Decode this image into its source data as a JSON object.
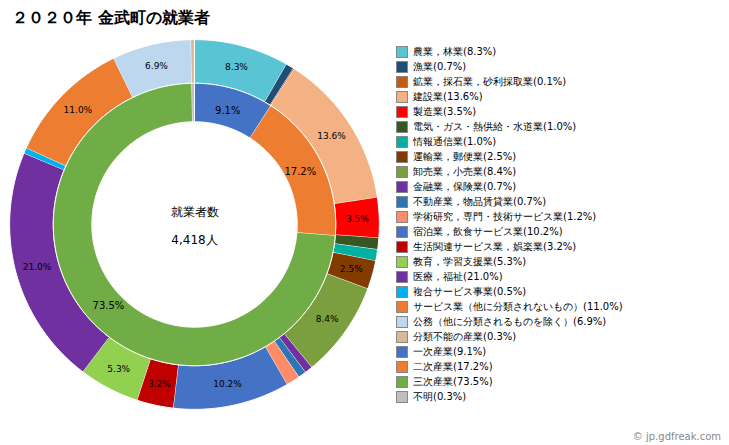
{
  "chart_data": {
    "type": "pie",
    "title": "２０２０年 金武町の就業者",
    "annotations": [
      "就業者数",
      "4,418人",
      "© jp.gdfreak.com"
    ],
    "series": [
      {
        "categories": [
          "農業，林業(8.3%)",
          "漁業(0.7%)",
          "鉱業，採石業，砂利採取業(0.1%)",
          "建設業(13.6%)",
          "製造業(3.5%)",
          "電気・ガス・熱供給・水道業(1.0%)",
          "情報通信業(1.0%)",
          "運輸業，郵便業(2.5%)",
          "卸売業，小売業(8.4%)",
          "金融業，保険業(0.7%)",
          "不動産業，物品賃貸業(0.7%)",
          "学術研究，専門・技術サービス業(1.2%)",
          "宿泊業，飲食サービス業(10.2%)",
          "生活関連サービス業，娯楽業(3.2%)",
          "教育，学習支援業(5.3%)",
          "医療，福祉(21.0%)",
          "複合サービス事業(0.5%)",
          "サービス業（他に分類されないもの）(11.0%)",
          "公務（他に分類されるものを除く）(6.9%)",
          "分類不能の産業(0.3%)"
        ],
        "values": [
          8.3,
          0.7,
          0.1,
          13.6,
          3.5,
          1.0,
          1.0,
          2.5,
          8.4,
          0.7,
          0.7,
          1.2,
          10.2,
          3.2,
          5.3,
          21.0,
          0.5,
          11.0,
          6.9,
          0.3
        ],
        "value_labels": [
          "8.3%",
          null,
          null,
          "13.6%",
          "3.5%",
          null,
          null,
          "2.5%",
          "8.4%",
          null,
          null,
          null,
          "10.2%",
          "3.2%",
          "5.3%",
          "21.0%",
          null,
          "11.0%",
          "6.9%",
          null
        ],
        "colors": [
          "#58C4D4",
          "#1F4E79",
          "#C55A11",
          "#F4B183",
          "#FF0000",
          "#375623",
          "#00B0A0",
          "#833C00",
          "#7B9E3E",
          "#7030A0",
          "#2E75B6",
          "#FF8C69",
          "#4472C4",
          "#C00000",
          "#92D050",
          "#7030A0",
          "#00B0F0",
          "#ED7D31",
          "#BDD7EE",
          "#D9B99B"
        ]
      },
      {
        "categories": [
          "一次産業(9.1%)",
          "二次産業(17.2%)",
          "三次産業(73.5%)",
          "不明(0.3%)"
        ],
        "values": [
          9.1,
          17.2,
          73.5,
          0.3
        ],
        "value_labels": [
          "9.1%",
          "17.2%",
          "73.5%",
          null
        ],
        "colors": [
          "#4472C4",
          "#ED7D31",
          "#70AD47",
          "#BFBFBF"
        ]
      }
    ],
    "data_labels": true,
    "legend": "right"
  }
}
